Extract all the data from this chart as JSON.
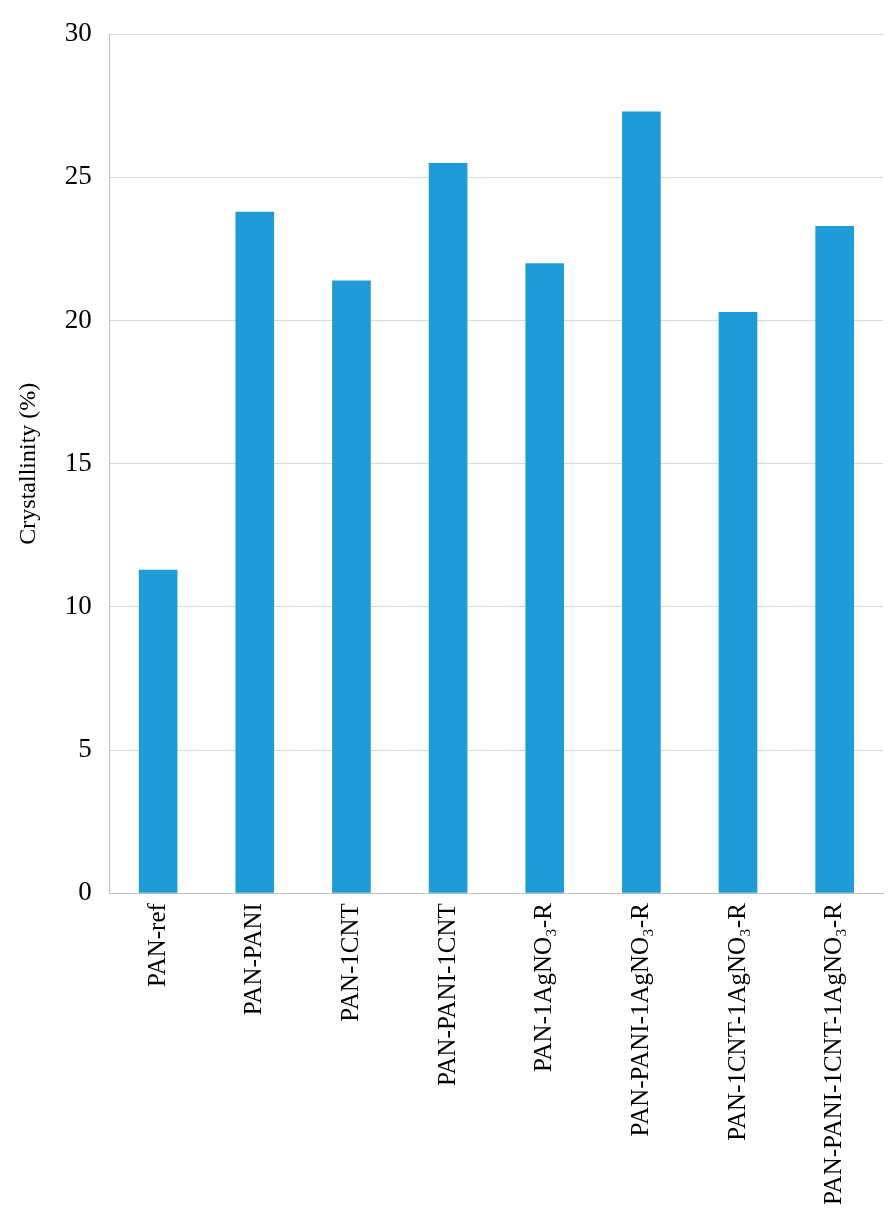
{
  "chart_data": {
    "type": "bar",
    "ylabel": "Crystallinity (%)",
    "categories": [
      "PAN-ref",
      "PAN-PANI",
      "PAN-1CNT",
      "PAN-PANI-1CNT",
      "PAN-1AgNO₃-R",
      "PAN-PANI-1AgNO₃-R",
      "PAN-1CNT-1AgNO₃-R",
      "PAN-PANI-1CNT-1AgNO₃-R"
    ],
    "values": [
      11.3,
      23.8,
      21.4,
      25.5,
      22.0,
      27.3,
      20.3,
      23.3
    ],
    "color": "#1f9bd7",
    "ylim": [
      0,
      30
    ],
    "yticks": [
      0,
      5,
      10,
      15,
      20,
      25,
      30
    ],
    "grid": "y",
    "legend": false
  }
}
